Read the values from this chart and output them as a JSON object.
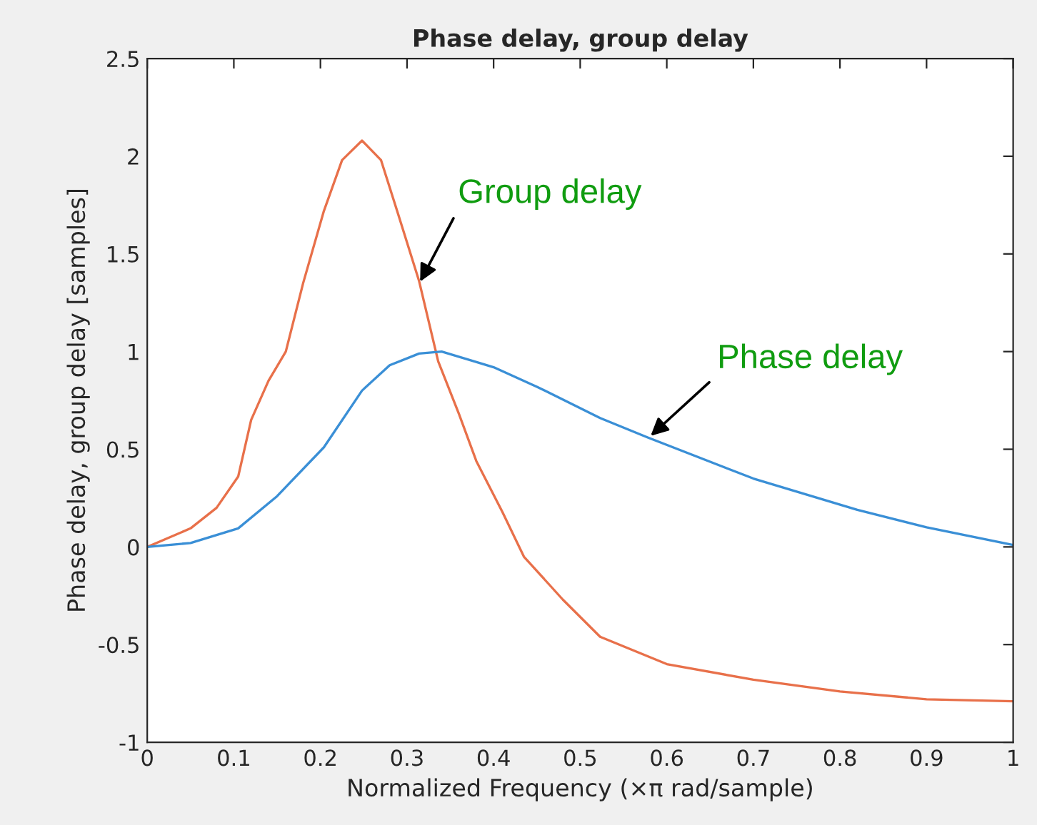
{
  "chart_data": {
    "type": "line",
    "title": "Phase delay, group delay",
    "xlabel": "Normalized Frequency (×π rad/sample)",
    "ylabel": "Phase delay, group delay [samples]",
    "xlim": [
      0,
      1
    ],
    "ylim": [
      -1,
      2.5
    ],
    "xticks": [
      0,
      0.1,
      0.2,
      0.3,
      0.4,
      0.5,
      0.6,
      0.7,
      0.8,
      0.9,
      1
    ],
    "yticks": [
      -1,
      -0.5,
      0,
      0.5,
      1,
      1.5,
      2,
      2.5
    ],
    "grid": false,
    "legend": false,
    "series": [
      {
        "color": "#e8704a",
        "x": [
          0,
          0.05,
          0.08,
          0.105,
          0.12,
          0.14,
          0.16,
          0.18,
          0.204,
          0.225,
          0.248,
          0.27,
          0.29,
          0.314,
          0.336,
          0.36,
          0.38,
          0.41,
          0.435,
          0.48,
          0.523,
          0.6,
          0.7,
          0.8,
          0.9,
          1
        ],
        "values": [
          0,
          0.095,
          0.2,
          0.36,
          0.65,
          0.85,
          1.0,
          1.35,
          1.72,
          1.98,
          2.08,
          1.98,
          1.7,
          1.36,
          0.95,
          0.68,
          0.44,
          0.18,
          -0.05,
          -0.27,
          -0.46,
          -0.6,
          -0.68,
          -0.74,
          -0.78,
          -0.79
        ]
      },
      {
        "color": "#3a8fd6",
        "x": [
          0,
          0.05,
          0.105,
          0.15,
          0.204,
          0.248,
          0.28,
          0.314,
          0.34,
          0.4,
          0.45,
          0.523,
          0.578,
          0.7,
          0.82,
          0.9,
          1
        ],
        "values": [
          0,
          0.02,
          0.095,
          0.26,
          0.51,
          0.8,
          0.93,
          0.99,
          1.0,
          0.92,
          0.82,
          0.66,
          0.56,
          0.35,
          0.19,
          0.1,
          0.01
        ]
      }
    ],
    "annotations": [
      {
        "text": "Group delay",
        "x": 0.313,
        "y": 1.34
      },
      {
        "text": "Phase delay",
        "x": 0.578,
        "y": 0.555
      }
    ]
  }
}
